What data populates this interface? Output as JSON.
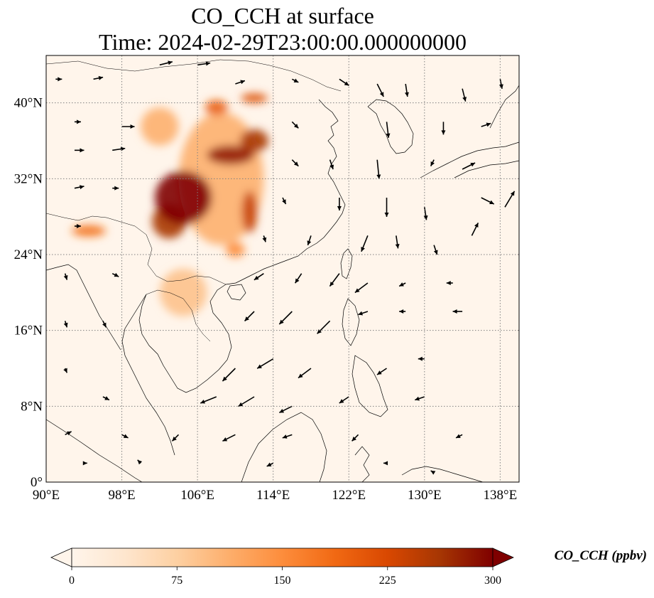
{
  "title": {
    "line1": "CO_CCH at surface",
    "line2": "Time: 2024-02-29T23:00:00.000000000"
  },
  "map": {
    "lon_range": [
      90,
      140
    ],
    "lat_range": [
      0,
      45
    ],
    "lon_ticks": [
      {
        "value": 90,
        "label": "90°E"
      },
      {
        "value": 98,
        "label": "98°E"
      },
      {
        "value": 106,
        "label": "106°E"
      },
      {
        "value": 114,
        "label": "114°E"
      },
      {
        "value": 122,
        "label": "122°E"
      },
      {
        "value": 130,
        "label": "130°E"
      },
      {
        "value": 138,
        "label": "138°E"
      }
    ],
    "lat_ticks": [
      {
        "value": 0,
        "label": "0°"
      },
      {
        "value": 8,
        "label": "8°N"
      },
      {
        "value": 16,
        "label": "16°N"
      },
      {
        "value": 24,
        "label": "24°N"
      },
      {
        "value": 32,
        "label": "32°N"
      },
      {
        "value": 40,
        "label": "40°N"
      }
    ],
    "gridlines": true,
    "background_color": "#fff5eb",
    "high_concentration_regions": [
      {
        "lon": 104.5,
        "lat": 30.0,
        "rlon": 3.0,
        "rlat": 2.8,
        "value": 300
      },
      {
        "lon": 103.0,
        "lat": 27.5,
        "rlon": 1.8,
        "rlat": 1.8,
        "value": 260
      },
      {
        "lon": 111.5,
        "lat": 28.5,
        "rlon": 0.8,
        "rlat": 2.2,
        "value": 240
      },
      {
        "lon": 109.5,
        "lat": 34.5,
        "rlon": 2.5,
        "rlat": 1.0,
        "value": 280
      },
      {
        "lon": 112.0,
        "lat": 36.0,
        "rlon": 1.5,
        "rlat": 1.2,
        "value": 260
      },
      {
        "lon": 108.0,
        "lat": 39.5,
        "rlon": 1.2,
        "rlat": 0.8,
        "value": 200
      },
      {
        "lon": 112.0,
        "lat": 40.5,
        "rlon": 1.4,
        "rlat": 0.5,
        "value": 220
      },
      {
        "lon": 94.5,
        "lat": 26.5,
        "rlon": 1.8,
        "rlat": 0.6,
        "value": 180
      },
      {
        "lon": 110.0,
        "lat": 24.5,
        "rlon": 1.0,
        "rlat": 0.8,
        "value": 150
      },
      {
        "lon": 104.5,
        "lat": 20.0,
        "rlon": 2.5,
        "rlat": 2.5,
        "value": 90
      },
      {
        "lon": 108.5,
        "lat": 32.0,
        "rlon": 4.5,
        "rlat": 7.0,
        "value": 110
      },
      {
        "lon": 102.0,
        "lat": 37.5,
        "rlon": 2.0,
        "rlat": 2.0,
        "value": 110
      }
    ],
    "wind_vectors": [
      {
        "lon": 91,
        "lat": 42.5,
        "u": 1,
        "v": 0
      },
      {
        "lon": 95,
        "lat": 42.5,
        "u": 1.5,
        "v": 0.3
      },
      {
        "lon": 102,
        "lat": 44,
        "u": 2,
        "v": 0.5
      },
      {
        "lon": 106,
        "lat": 44,
        "u": 2,
        "v": 0.3
      },
      {
        "lon": 110,
        "lat": 42,
        "u": 1.5,
        "v": 0.5
      },
      {
        "lon": 116,
        "lat": 42.5,
        "u": 1,
        "v": -0.5
      },
      {
        "lon": 121,
        "lat": 42.5,
        "u": 1.5,
        "v": -1
      },
      {
        "lon": 125,
        "lat": 42,
        "u": 1,
        "v": -2
      },
      {
        "lon": 128,
        "lat": 42,
        "u": 0.3,
        "v": -2
      },
      {
        "lon": 134,
        "lat": 41.5,
        "u": 0.5,
        "v": -2
      },
      {
        "lon": 138,
        "lat": 42.5,
        "u": 0.3,
        "v": -1.5
      },
      {
        "lon": 93,
        "lat": 38,
        "u": 1,
        "v": 0
      },
      {
        "lon": 98,
        "lat": 37.5,
        "u": 2,
        "v": 0
      },
      {
        "lon": 116,
        "lat": 38,
        "u": 1,
        "v": -1
      },
      {
        "lon": 126,
        "lat": 38,
        "u": 0.3,
        "v": -2.5
      },
      {
        "lon": 132,
        "lat": 38,
        "u": 0,
        "v": -2
      },
      {
        "lon": 136,
        "lat": 37.5,
        "u": 1.5,
        "v": 0.5
      },
      {
        "lon": 93,
        "lat": 35,
        "u": 1.5,
        "v": 0
      },
      {
        "lon": 97,
        "lat": 35,
        "u": 2,
        "v": 0.3
      },
      {
        "lon": 116,
        "lat": 34,
        "u": 1,
        "v": -1
      },
      {
        "lon": 120,
        "lat": 34,
        "u": 0.5,
        "v": -1.5
      },
      {
        "lon": 125,
        "lat": 34,
        "u": 0.3,
        "v": -3
      },
      {
        "lon": 131,
        "lat": 34,
        "u": -0.5,
        "v": -1
      },
      {
        "lon": 134,
        "lat": 33,
        "u": 2,
        "v": 1
      },
      {
        "lon": 93,
        "lat": 31,
        "u": 1.5,
        "v": 0.3
      },
      {
        "lon": 97,
        "lat": 31,
        "u": 1,
        "v": 0
      },
      {
        "lon": 115,
        "lat": 30,
        "u": 0.5,
        "v": -1
      },
      {
        "lon": 121,
        "lat": 30,
        "u": 0,
        "v": -2
      },
      {
        "lon": 126,
        "lat": 30,
        "u": 0,
        "v": -3
      },
      {
        "lon": 130,
        "lat": 29,
        "u": 0.3,
        "v": -2
      },
      {
        "lon": 136,
        "lat": 30,
        "u": 2,
        "v": -1
      },
      {
        "lon": 138.5,
        "lat": 29,
        "u": 1.5,
        "v": 2.5
      },
      {
        "lon": 93,
        "lat": 27,
        "u": 1,
        "v": 0
      },
      {
        "lon": 113,
        "lat": 26,
        "u": 0.3,
        "v": -1
      },
      {
        "lon": 118,
        "lat": 26,
        "u": -0.5,
        "v": -1.5
      },
      {
        "lon": 124,
        "lat": 26,
        "u": -1,
        "v": -2.5
      },
      {
        "lon": 127,
        "lat": 26,
        "u": 0.3,
        "v": -2
      },
      {
        "lon": 131,
        "lat": 25,
        "u": 0.5,
        "v": -1.5
      },
      {
        "lon": 135,
        "lat": 26,
        "u": 1,
        "v": 2
      },
      {
        "lon": 92,
        "lat": 22,
        "u": 0.3,
        "v": -1
      },
      {
        "lon": 97,
        "lat": 22,
        "u": 1,
        "v": -0.5
      },
      {
        "lon": 113,
        "lat": 22,
        "u": -1.5,
        "v": -1
      },
      {
        "lon": 117,
        "lat": 22,
        "u": -1,
        "v": -1.5
      },
      {
        "lon": 121,
        "lat": 22,
        "u": -1.5,
        "v": -2
      },
      {
        "lon": 124,
        "lat": 21,
        "u": -2,
        "v": -1.5
      },
      {
        "lon": 128,
        "lat": 21,
        "u": -1,
        "v": -0.5
      },
      {
        "lon": 133,
        "lat": 21,
        "u": -1,
        "v": 0
      },
      {
        "lon": 92,
        "lat": 17,
        "u": 0.3,
        "v": -1
      },
      {
        "lon": 96,
        "lat": 17,
        "u": 0.5,
        "v": -1
      },
      {
        "lon": 112,
        "lat": 18,
        "u": -1.5,
        "v": -1.5
      },
      {
        "lon": 116,
        "lat": 18,
        "u": -2,
        "v": -2
      },
      {
        "lon": 120,
        "lat": 17,
        "u": -2,
        "v": -2
      },
      {
        "lon": 124,
        "lat": 18,
        "u": -1.5,
        "v": -0.5
      },
      {
        "lon": 128,
        "lat": 18,
        "u": -1,
        "v": 0
      },
      {
        "lon": 134,
        "lat": 18,
        "u": -1.5,
        "v": 0
      },
      {
        "lon": 92,
        "lat": 12,
        "u": 0.3,
        "v": -0.7
      },
      {
        "lon": 110,
        "lat": 12,
        "u": -2,
        "v": -2
      },
      {
        "lon": 114,
        "lat": 13,
        "u": -2.5,
        "v": -1.5
      },
      {
        "lon": 118,
        "lat": 12,
        "u": -2,
        "v": -1.5
      },
      {
        "lon": 126,
        "lat": 12,
        "u": -1.5,
        "v": -1
      },
      {
        "lon": 130,
        "lat": 13,
        "u": -1,
        "v": 0
      },
      {
        "lon": 96,
        "lat": 9,
        "u": 1,
        "v": -0.5
      },
      {
        "lon": 108,
        "lat": 9,
        "u": -2.5,
        "v": -1
      },
      {
        "lon": 112,
        "lat": 9,
        "u": -2.5,
        "v": -1.5
      },
      {
        "lon": 116,
        "lat": 8,
        "u": -2,
        "v": -1
      },
      {
        "lon": 122,
        "lat": 9,
        "u": -1.5,
        "v": -1
      },
      {
        "lon": 130,
        "lat": 9,
        "u": -1.5,
        "v": -0.5
      },
      {
        "lon": 92,
        "lat": 5,
        "u": 1,
        "v": 0.5
      },
      {
        "lon": 98,
        "lat": 5,
        "u": 1,
        "v": -0.5
      },
      {
        "lon": 104,
        "lat": 5,
        "u": -1,
        "v": -1
      },
      {
        "lon": 110,
        "lat": 5,
        "u": -2,
        "v": -1
      },
      {
        "lon": 116,
        "lat": 5,
        "u": -1.5,
        "v": -0.5
      },
      {
        "lon": 123,
        "lat": 5,
        "u": -1,
        "v": -1
      },
      {
        "lon": 134,
        "lat": 5,
        "u": -1,
        "v": -0.5
      },
      {
        "lon": 94,
        "lat": 2,
        "u": 0.5,
        "v": 0
      },
      {
        "lon": 100,
        "lat": 2,
        "u": -0.5,
        "v": 0.5
      },
      {
        "lon": 114,
        "lat": 2,
        "u": -1,
        "v": -0.5
      },
      {
        "lon": 126,
        "lat": 2,
        "u": -0.5,
        "v": 0
      },
      {
        "lon": 131,
        "lat": 1,
        "u": -0.5,
        "v": 0.3
      }
    ]
  },
  "colorbar": {
    "label": "CO_CCH (ppbv)",
    "min": 0,
    "max": 300,
    "ticks": [
      {
        "value": 0,
        "label": "0"
      },
      {
        "value": 75,
        "label": "75"
      },
      {
        "value": 150,
        "label": "150"
      },
      {
        "value": 225,
        "label": "225"
      },
      {
        "value": 300,
        "label": "300"
      }
    ],
    "colors": [
      "#fff5eb",
      "#fee6ce",
      "#fdd0a2",
      "#fdae6b",
      "#fd8d3c",
      "#f16913",
      "#d94801",
      "#a63603",
      "#7f0000"
    ]
  }
}
